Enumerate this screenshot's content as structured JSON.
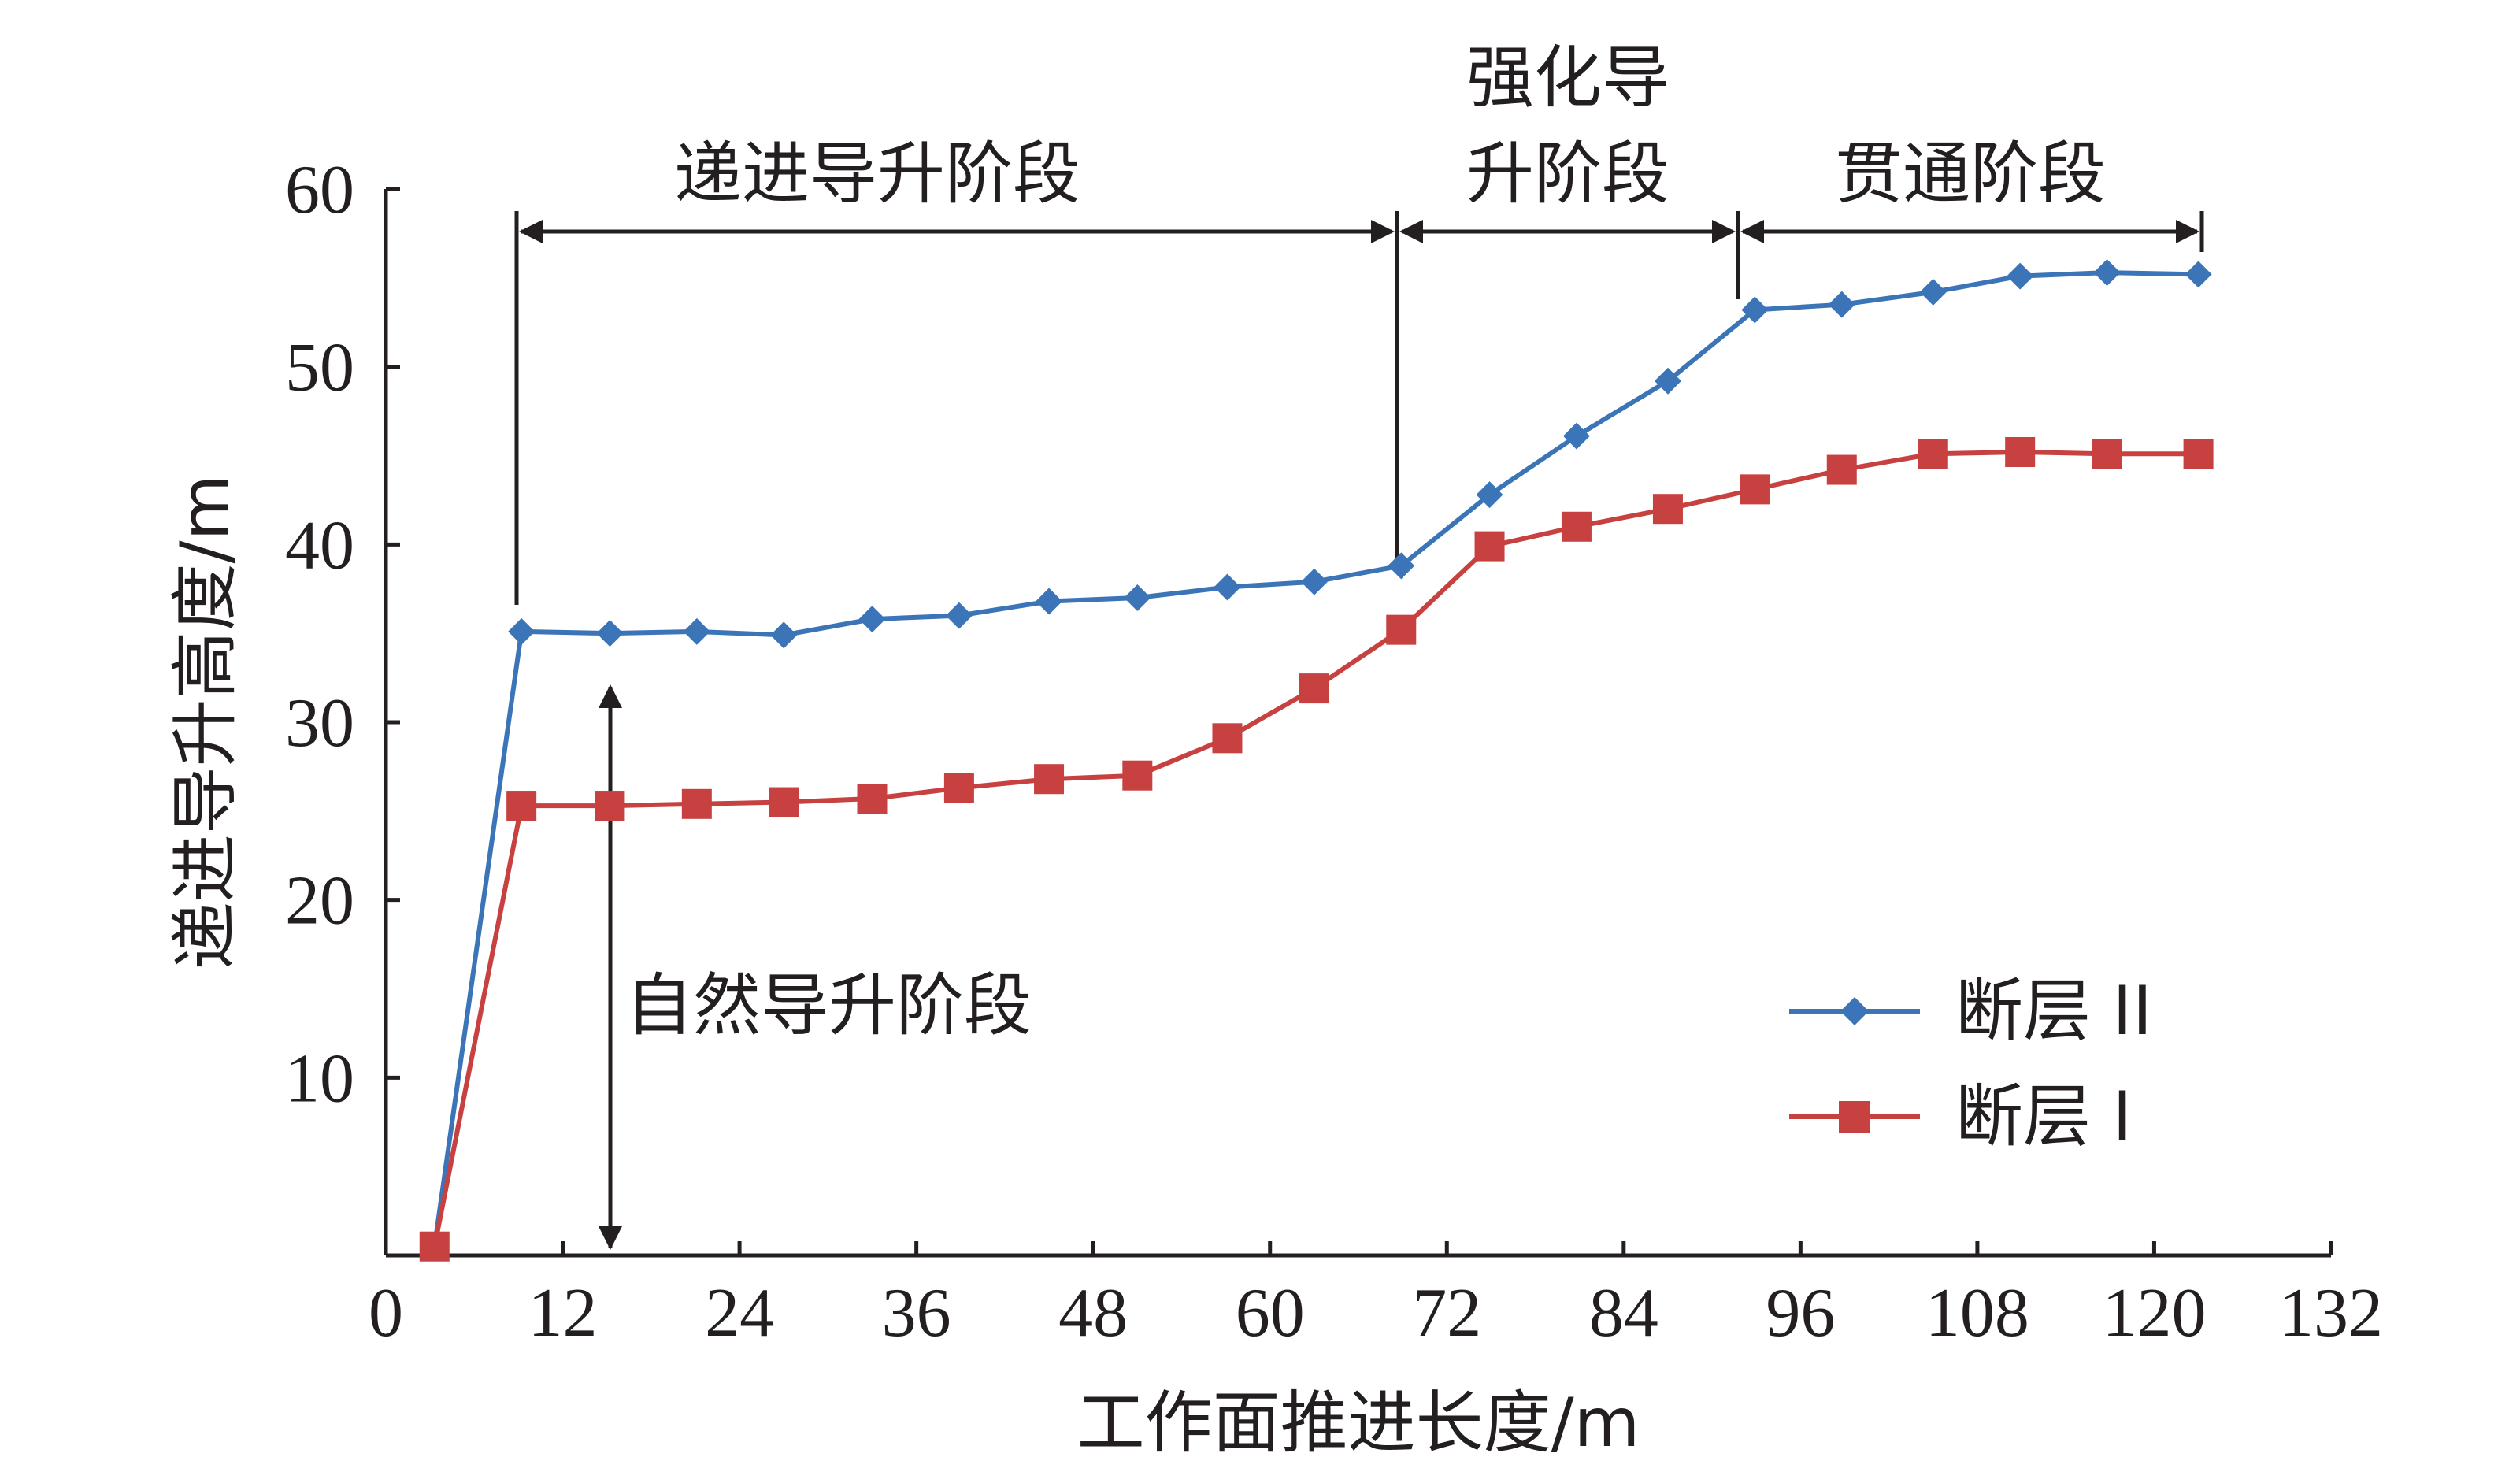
{
  "chart_data": {
    "type": "line",
    "title": "",
    "xlabel": "工作面推进长度/m",
    "ylabel": "递进导升高度/m",
    "xlim": [
      0,
      132
    ],
    "ylim": [
      0,
      60
    ],
    "x_ticks": [
      0,
      12,
      24,
      36,
      48,
      60,
      72,
      84,
      96,
      108,
      120,
      132
    ],
    "y_ticks": [
      10,
      20,
      30,
      40,
      50,
      60
    ],
    "grid": false,
    "legend_position": "right-center",
    "series": [
      {
        "name": "断层 II",
        "color": "#3b75b8",
        "marker": "diamond",
        "points": [
          [
            3.3,
            0.5
          ],
          [
            9.2,
            35.1
          ],
          [
            15.2,
            35.0
          ],
          [
            21.1,
            35.1
          ],
          [
            27.0,
            34.9
          ],
          [
            33.0,
            35.8
          ],
          [
            38.9,
            36.0
          ],
          [
            45.0,
            36.8
          ],
          [
            51.0,
            37.0
          ],
          [
            57.1,
            37.6
          ],
          [
            63.0,
            37.9
          ],
          [
            68.9,
            38.8
          ],
          [
            74.9,
            42.8
          ],
          [
            80.8,
            46.1
          ],
          [
            87.0,
            49.2
          ],
          [
            92.9,
            53.2
          ],
          [
            98.8,
            53.5
          ],
          [
            105.0,
            54.2
          ],
          [
            110.9,
            55.1
          ],
          [
            116.8,
            55.3
          ],
          [
            123.0,
            55.2
          ]
        ]
      },
      {
        "name": "断层 I",
        "color": "#c6413f",
        "marker": "square",
        "points": [
          [
            3.3,
            0.5
          ],
          [
            9.2,
            25.3
          ],
          [
            15.2,
            25.3
          ],
          [
            21.1,
            25.4
          ],
          [
            27.0,
            25.5
          ],
          [
            33.0,
            25.7
          ],
          [
            38.9,
            26.3
          ],
          [
            45.0,
            26.8
          ],
          [
            51.0,
            27.0
          ],
          [
            57.1,
            29.1
          ],
          [
            63.0,
            31.9
          ],
          [
            68.9,
            35.2
          ],
          [
            74.9,
            39.9
          ],
          [
            80.8,
            41.0
          ],
          [
            87.0,
            42.0
          ],
          [
            92.9,
            43.1
          ],
          [
            98.8,
            44.2
          ],
          [
            105.0,
            45.1
          ],
          [
            110.9,
            45.2
          ],
          [
            116.8,
            45.1
          ],
          [
            123.0,
            45.1
          ]
        ]
      }
    ],
    "stages": [
      {
        "label": "递进导升阶段",
        "from": 9.2,
        "to": 68.9
      },
      {
        "label": "强化导升阶段",
        "from": 68.9,
        "to": 92.0
      },
      {
        "label": "贯通阶段",
        "from": 92.0,
        "to": 123.0
      }
    ],
    "annotations": [
      {
        "label": "自然导升阶段",
        "x": 15.2,
        "y_from": 0,
        "y_to": 35.0
      }
    ]
  },
  "labels": {
    "stage_1": "递进导升阶段",
    "stage_2_line1": "强化导",
    "stage_2_line2": "升阶段",
    "stage_3": "贯通阶段",
    "natural_stage": "自然导升阶段"
  }
}
